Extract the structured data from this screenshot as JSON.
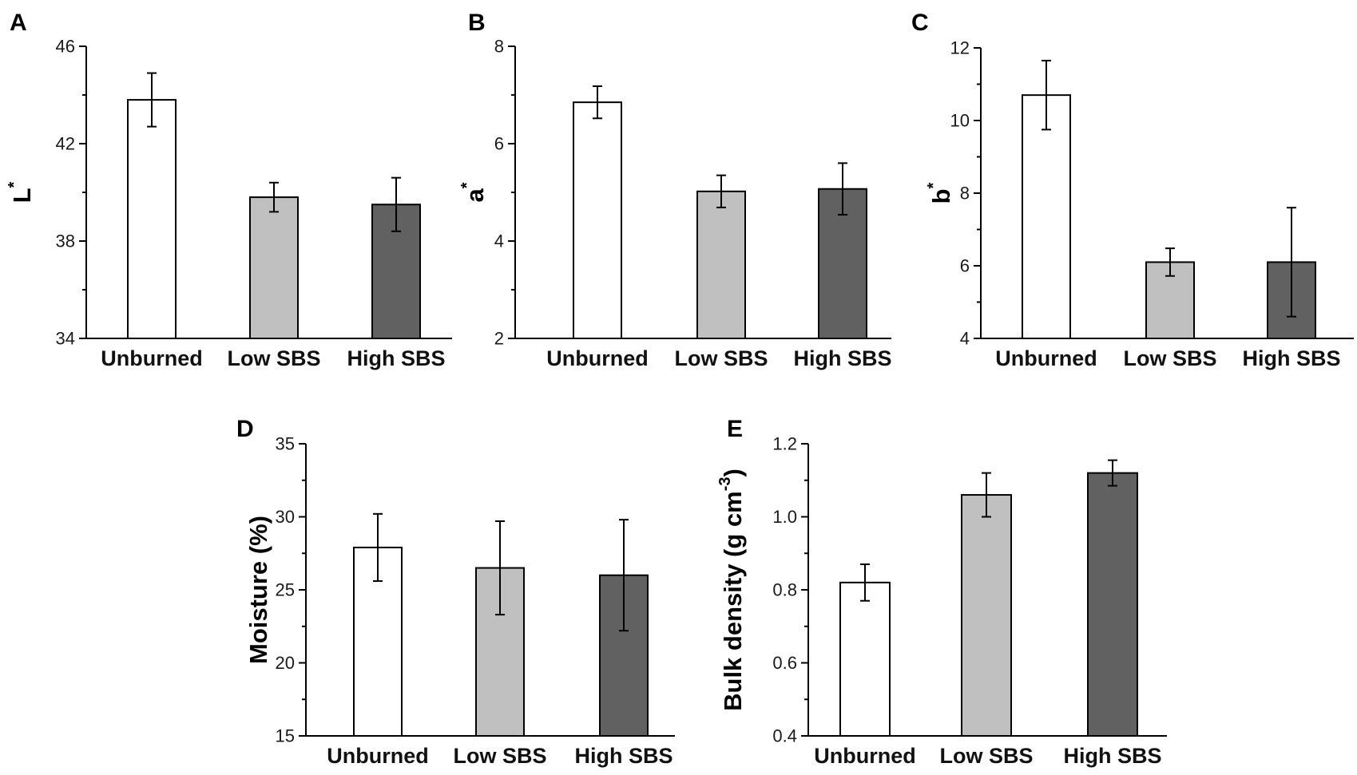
{
  "colors": {
    "Unburned": "#ffffff",
    "Low SBS": "#c0c0c0",
    "High SBS": "#616161"
  },
  "chart_data": [
    {
      "panel": "A",
      "type": "bar",
      "categories": [
        "Unburned",
        "Low SBS",
        "High SBS"
      ],
      "values": [
        43.8,
        39.8,
        39.5
      ],
      "errors": [
        1.1,
        0.6,
        1.1
      ],
      "ylabel": "L*",
      "ylabel_main": "L",
      "ylabel_sup": "*",
      "ylim": [
        34,
        46
      ],
      "yticks": [
        34,
        38,
        42,
        46
      ],
      "ytick_labels": [
        "34",
        "38",
        "42",
        "46"
      ]
    },
    {
      "panel": "B",
      "type": "bar",
      "categories": [
        "Unburned",
        "Low SBS",
        "High SBS"
      ],
      "values": [
        6.85,
        5.02,
        5.07
      ],
      "errors": [
        0.33,
        0.33,
        0.53
      ],
      "ylabel": "a*",
      "ylabel_main": "a",
      "ylabel_sup": "*",
      "ylim": [
        2,
        8
      ],
      "yticks": [
        2,
        4,
        6,
        8
      ],
      "ytick_labels": [
        "2",
        "4",
        "6",
        "8"
      ]
    },
    {
      "panel": "C",
      "type": "bar",
      "categories": [
        "Unburned",
        "Low SBS",
        "High SBS"
      ],
      "values": [
        10.7,
        6.1,
        6.1
      ],
      "errors": [
        0.95,
        0.38,
        1.5
      ],
      "ylabel": "b*",
      "ylabel_main": "b",
      "ylabel_sup": "*",
      "ylim": [
        4,
        12
      ],
      "yticks": [
        4,
        6,
        8,
        10,
        12
      ],
      "ytick_labels": [
        "4",
        "6",
        "8",
        "10",
        "12"
      ]
    },
    {
      "panel": "D",
      "type": "bar",
      "categories": [
        "Unburned",
        "Low SBS",
        "High SBS"
      ],
      "values": [
        27.9,
        26.5,
        26.0
      ],
      "errors": [
        2.3,
        3.2,
        3.8
      ],
      "ylabel": "Moisture (%)",
      "ylabel_main": "Moisture (%)",
      "ylabel_sup": "",
      "ylim": [
        15,
        35
      ],
      "yticks": [
        15,
        20,
        25,
        30,
        35
      ],
      "ytick_labels": [
        "15",
        "20",
        "25",
        "30",
        "35"
      ]
    },
    {
      "panel": "E",
      "type": "bar",
      "categories": [
        "Unburned",
        "Low SBS",
        "High SBS"
      ],
      "values": [
        0.82,
        1.06,
        1.12
      ],
      "errors": [
        0.05,
        0.06,
        0.035
      ],
      "ylabel": "Bulk density (g cm-3)",
      "ylabel_main": "Bulk density (g cm",
      "ylabel_sup": "-3",
      "ylabel_end": ")",
      "ylim": [
        0.4,
        1.2
      ],
      "yticks": [
        0.4,
        0.6,
        0.8,
        1.0,
        1.2
      ],
      "ytick_labels": [
        "0.4",
        "0.6",
        "0.8",
        "1.0",
        "1.2"
      ]
    }
  ]
}
